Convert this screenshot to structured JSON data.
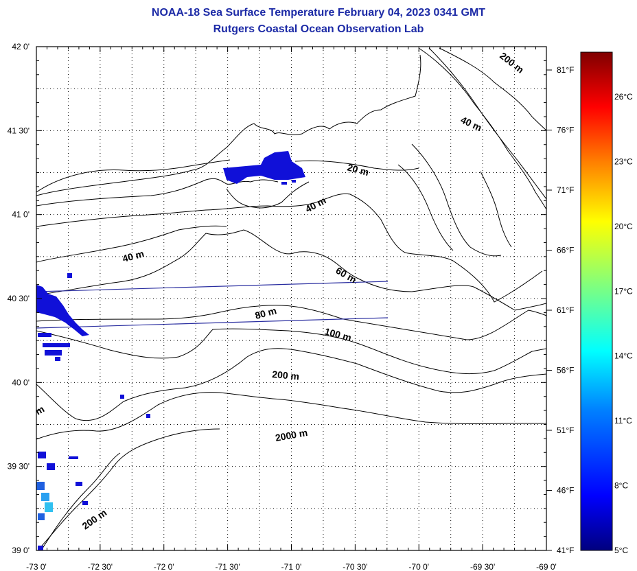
{
  "title": "NOAA-18 Sea Surface Temperature February 04, 2023 0341 GMT",
  "subtitle": "Rutgers Coastal Ocean Observation Lab",
  "map": {
    "lon_range": [
      -73.0,
      -69.0
    ],
    "lat_range": [
      39.0,
      42.0
    ],
    "lon_labels": [
      "-73 0'",
      "-72 30'",
      "-72 0'",
      "-71 30'",
      "-71 0'",
      "-70 30'",
      "-70 0'",
      "-69 30'",
      "-69 0'"
    ],
    "lat_labels": [
      "42 0'",
      "41 30'",
      "41 0'",
      "40 30'",
      "40 0'",
      "39 30'",
      "39 0'"
    ],
    "grid": "dotted",
    "contour_labels": [
      "200 m",
      "40 m",
      "20 m",
      "40 m",
      "40 m",
      "60 m",
      "80 m",
      "100 m",
      "200 m",
      "2000 m",
      "200 m",
      "m"
    ]
  },
  "colorbar": {
    "celsius_labels": [
      "26°C",
      "23°C",
      "20°C",
      "17°C",
      "14°C",
      "11°C",
      "8°C",
      "5°C"
    ],
    "fahrenheit_labels": [
      "81°F",
      "76°F",
      "71°F",
      "66°F",
      "61°F",
      "56°F",
      "51°F",
      "46°F",
      "41°F"
    ],
    "colors": [
      "#00007f",
      "#0000ff",
      "#007fff",
      "#00ffff",
      "#7fff7f",
      "#ffff00",
      "#ff7f00",
      "#ff0000",
      "#7f0000"
    ]
  }
}
